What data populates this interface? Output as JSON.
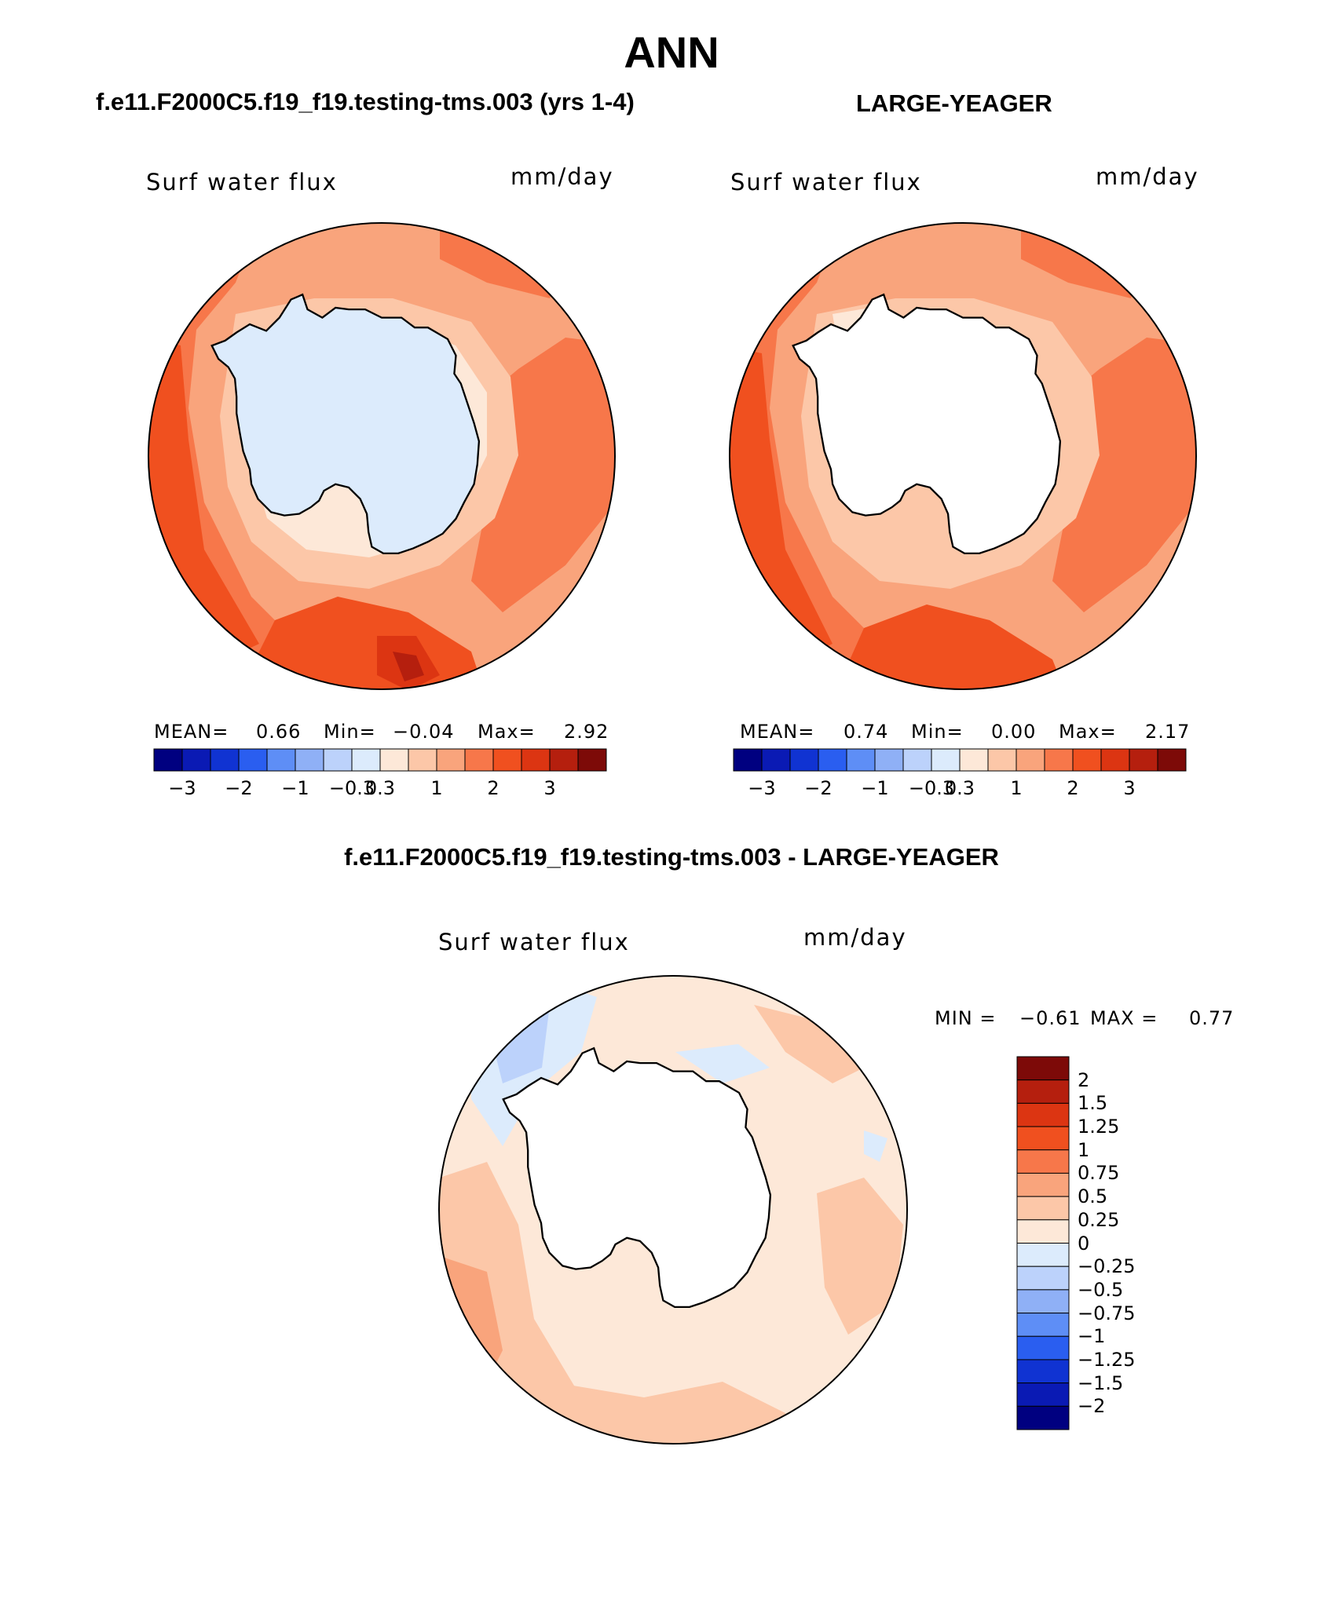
{
  "figure": {
    "title": "ANN",
    "panel_left_title": "f.e11.F2000C5.f19_f19.testing-tms.003 (yrs 1-4)",
    "panel_right_title": "LARGE-YEAGER",
    "panel_diff_title": "f.e11.F2000C5.f19_f19.testing-tms.003 - LARGE-YEAGER"
  },
  "panels": {
    "left": {
      "variable": "Surf water flux",
      "units": "mm/day",
      "mean_label": "MEAN=",
      "mean": "0.66",
      "min_label": "Min=",
      "min": "−0.04",
      "max_label": "Max=",
      "max": "2.92"
    },
    "right": {
      "variable": "Surf water flux",
      "units": "mm/day",
      "mean_label": "MEAN=",
      "mean": "0.74",
      "min_label": "Min=",
      "min": "0.00",
      "max_label": "Max=",
      "max": "2.17"
    },
    "diff": {
      "variable": "Surf water flux",
      "units": "mm/day",
      "min_label": "MIN =",
      "min": "−0.61",
      "max_label": "MAX =",
      "max": "0.77"
    }
  },
  "chart_data": {
    "type": "map",
    "projection": "south polar stereographic",
    "region": "Southern Ocean / Antarctica",
    "abs_colorbar": {
      "levels": [
        "-3",
        "-2",
        "-1",
        "-0.3",
        "0.3",
        "1",
        "2",
        "3"
      ],
      "tick_labels": [
        "−3",
        "−2",
        "−1",
        "−0.3",
        "0.3",
        "1",
        "2",
        "3"
      ],
      "colors": [
        "#000080",
        "#0a1ab4",
        "#1033d2",
        "#2a5ef0",
        "#5e8ef6",
        "#8fb0f6",
        "#bcd2fb",
        "#dcebfc",
        "#fde8d8",
        "#fcc7a8",
        "#f9a47c",
        "#f7774a",
        "#f0501f",
        "#dc3512",
        "#b51f0e",
        "#7d0a08"
      ]
    },
    "diff_colorbar": {
      "labels": [
        "2",
        "1.5",
        "1.25",
        "1",
        "0.75",
        "0.5",
        "0.25",
        "0",
        "−0.25",
        "−0.5",
        "−0.75",
        "−1",
        "−1.25",
        "−1.5",
        "−2"
      ],
      "colors": [
        "#7d0a08",
        "#b51f0e",
        "#dc3512",
        "#f0501f",
        "#f7774a",
        "#f9a47c",
        "#fcc7a8",
        "#fde8d8",
        "#dcebfc",
        "#bcd2fb",
        "#8fb0f6",
        "#5e8ef6",
        "#2a5ef0",
        "#1033d2",
        "#0a1ab4",
        "#000080"
      ]
    }
  }
}
